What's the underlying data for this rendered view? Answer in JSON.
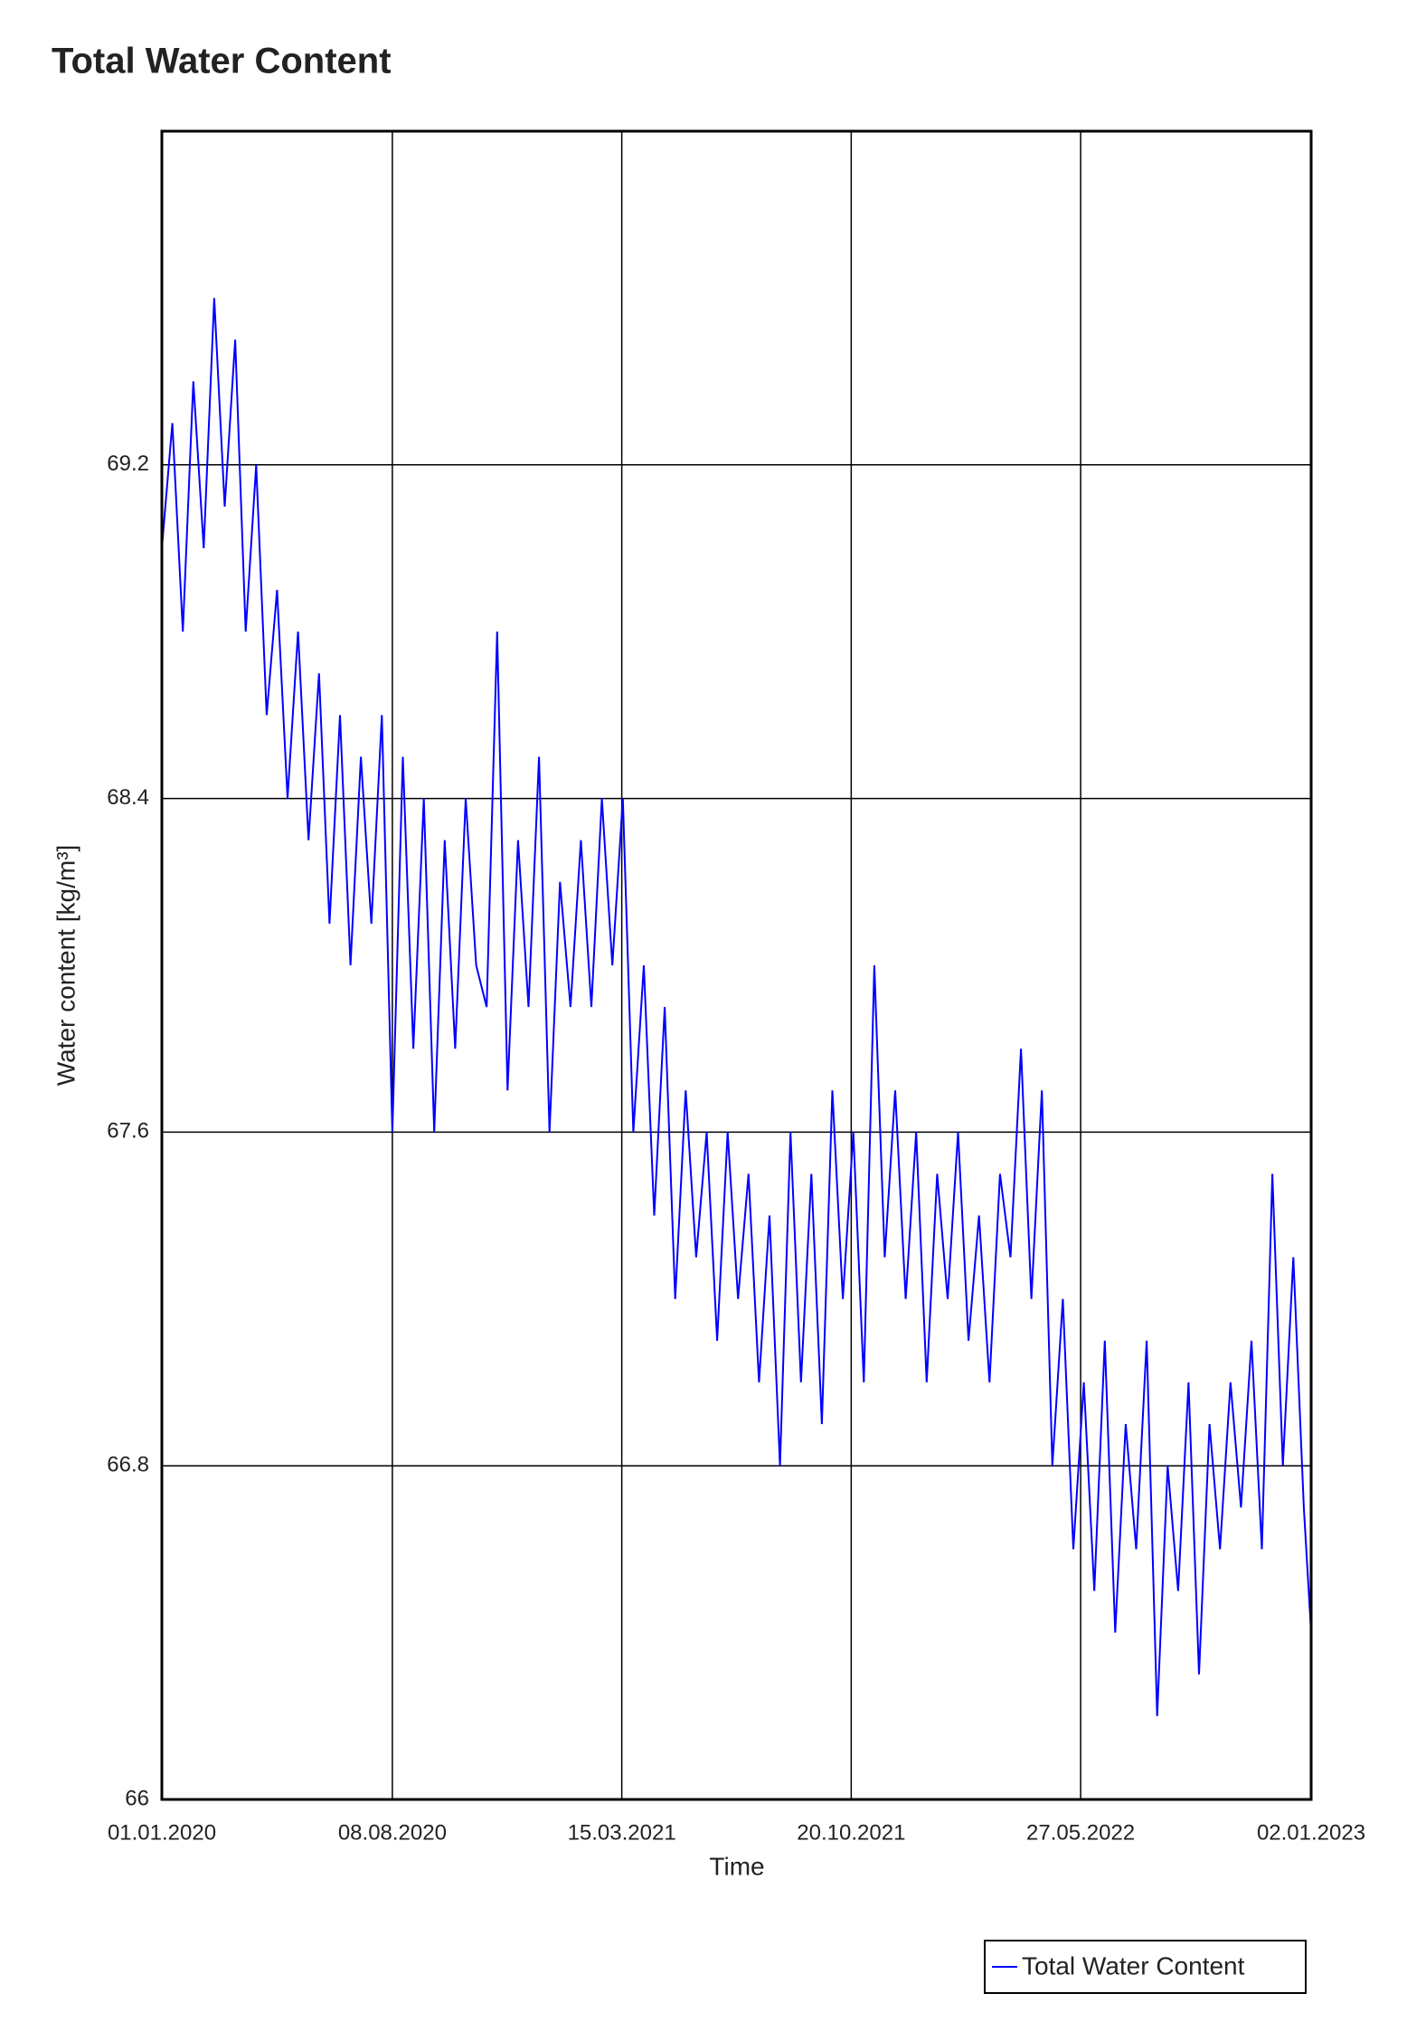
{
  "chart_data": {
    "type": "line",
    "title": "Total Water Content",
    "xlabel": "Time",
    "ylabel": "Water content [kg/m³]",
    "xlim": [
      "01.01.2020",
      "02.01.2023"
    ],
    "xticks": [
      "01.01.2020",
      "08.08.2020",
      "15.03.2021",
      "20.10.2021",
      "27.05.2022",
      "02.01.2023"
    ],
    "ylim": [
      66,
      70
    ],
    "yticks": [
      66,
      66.8,
      67.6,
      68.4,
      69.2
    ],
    "grid": true,
    "x": [
      "01.01.2020",
      "11.01.2020",
      "21.01.2020",
      "31.01.2020",
      "10.02.2020",
      "20.02.2020",
      "01.03.2020",
      "11.03.2020",
      "21.03.2020",
      "31.03.2020",
      "10.04.2020",
      "20.04.2020",
      "30.04.2020",
      "10.05.2020",
      "20.05.2020",
      "30.05.2020",
      "09.06.2020",
      "19.06.2020",
      "29.06.2020",
      "09.07.2020",
      "19.07.2020",
      "29.07.2020",
      "08.08.2020",
      "18.08.2020",
      "28.08.2020",
      "07.09.2020",
      "17.09.2020",
      "27.09.2020",
      "07.10.2020",
      "17.10.2020",
      "27.10.2020",
      "06.11.2020",
      "16.11.2020",
      "26.11.2020",
      "06.12.2020",
      "16.12.2020",
      "26.12.2020",
      "05.01.2021",
      "15.01.2021",
      "25.01.2021",
      "04.02.2021",
      "14.02.2021",
      "24.02.2021",
      "06.03.2021",
      "16.03.2021",
      "26.03.2021",
      "05.04.2021",
      "15.04.2021",
      "25.04.2021",
      "05.05.2021",
      "15.05.2021",
      "25.05.2021",
      "04.06.2021",
      "14.06.2021",
      "24.06.2021",
      "04.07.2021",
      "14.07.2021",
      "24.07.2021",
      "03.08.2021",
      "13.08.2021",
      "23.08.2021",
      "02.09.2021",
      "12.09.2021",
      "22.09.2021",
      "02.10.2021",
      "12.10.2021",
      "22.10.2021",
      "01.11.2021",
      "11.11.2021",
      "21.11.2021",
      "01.12.2021",
      "11.12.2021",
      "21.12.2021",
      "31.12.2021",
      "10.01.2022",
      "20.01.2022",
      "30.01.2022",
      "09.02.2022",
      "19.02.2022",
      "01.03.2022",
      "11.03.2022",
      "21.03.2022",
      "31.03.2022",
      "10.04.2022",
      "20.04.2022",
      "30.04.2022",
      "10.05.2022",
      "20.05.2022",
      "30.05.2022",
      "09.06.2022",
      "19.06.2022",
      "29.06.2022",
      "09.07.2022",
      "19.07.2022",
      "29.07.2022",
      "08.08.2022",
      "18.08.2022",
      "28.08.2022",
      "07.09.2022",
      "17.09.2022",
      "27.09.2022",
      "07.10.2022",
      "17.10.2022",
      "27.10.2022",
      "06.11.2022",
      "16.11.2022",
      "26.11.2022",
      "06.12.2022",
      "16.12.2022",
      "26.12.2022",
      "02.01.2023"
    ],
    "series": [
      {
        "name": "Total Water Content",
        "color": "#0000ff",
        "values": [
          69.0,
          69.3,
          68.8,
          69.4,
          69.0,
          69.6,
          69.1,
          69.5,
          68.8,
          69.2,
          68.6,
          68.9,
          68.4,
          68.8,
          68.3,
          68.7,
          68.1,
          68.6,
          68.0,
          68.5,
          68.1,
          68.6,
          67.6,
          68.5,
          67.8,
          68.4,
          67.6,
          68.3,
          67.8,
          68.4,
          68.0,
          67.9,
          68.8,
          67.7,
          68.3,
          67.9,
          68.5,
          67.6,
          68.2,
          67.9,
          68.3,
          67.9,
          68.4,
          68.0,
          68.4,
          67.6,
          68.0,
          67.4,
          67.9,
          67.2,
          67.7,
          67.3,
          67.6,
          67.1,
          67.6,
          67.2,
          67.5,
          67.0,
          67.4,
          66.8,
          67.6,
          67.0,
          67.5,
          66.9,
          67.7,
          67.2,
          67.6,
          67.0,
          68.0,
          67.3,
          67.7,
          67.2,
          67.6,
          67.0,
          67.5,
          67.2,
          67.6,
          67.1,
          67.4,
          67.0,
          67.5,
          67.3,
          67.8,
          67.2,
          67.7,
          66.8,
          67.2,
          66.6,
          67.0,
          66.5,
          67.1,
          66.4,
          66.9,
          66.6,
          67.1,
          66.2,
          66.8,
          66.5,
          67.0,
          66.3,
          66.9,
          66.6,
          67.0,
          66.7,
          67.1,
          66.6,
          67.5,
          66.8,
          67.3,
          66.7,
          66.4
        ]
      }
    ]
  }
}
